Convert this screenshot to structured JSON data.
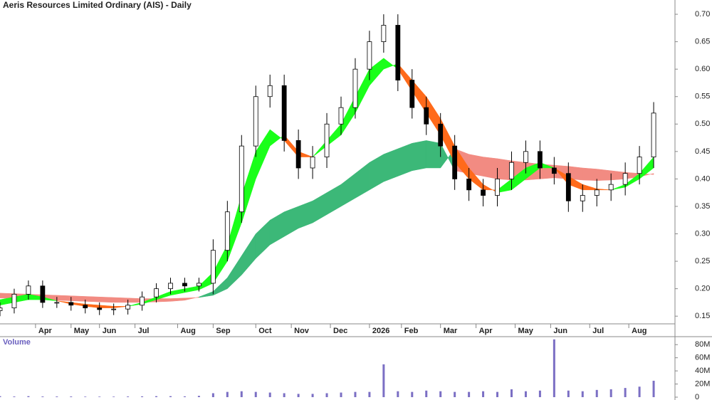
{
  "chart_data": {
    "type": "candlestick",
    "title": "Aeris Resources Limited Ordinary (AIS) - Daily",
    "x": [
      0,
      4,
      8,
      12,
      16,
      20,
      24,
      28,
      32,
      36,
      40,
      44,
      48,
      52,
      56,
      60,
      64,
      68,
      72,
      76,
      80,
      84,
      88,
      92,
      96,
      100,
      104,
      108,
      112,
      116,
      120,
      124,
      128,
      132,
      136,
      140,
      144,
      148,
      152,
      156,
      160,
      164,
      168,
      172,
      176,
      180,
      184
    ],
    "xlim": [
      0,
      190
    ],
    "xticks": [
      {
        "value": 10,
        "label": "Apr"
      },
      {
        "value": 20,
        "label": "May"
      },
      {
        "value": 28,
        "label": "Jun"
      },
      {
        "value": 38,
        "label": "Jul"
      },
      {
        "value": 50,
        "label": "Aug"
      },
      {
        "value": 60,
        "label": "Sep"
      },
      {
        "value": 72,
        "label": "Oct"
      },
      {
        "value": 82,
        "label": "Nov"
      },
      {
        "value": 93,
        "label": "Dec"
      },
      {
        "value": 104,
        "label": "2026"
      },
      {
        "value": 113,
        "label": "Feb"
      },
      {
        "value": 124,
        "label": "Mar"
      },
      {
        "value": 134,
        "label": "Apr"
      },
      {
        "value": 145,
        "label": "May"
      },
      {
        "value": 155,
        "label": "Jun"
      },
      {
        "value": 166,
        "label": "Jul"
      },
      {
        "value": 177,
        "label": "Aug"
      }
    ],
    "ylim": [
      0.136,
      0.726
    ],
    "yticks": [
      0.15,
      {
        "value": 0.2,
        "label": "0.20"
      },
      0.25,
      {
        "value": 0.3,
        "label": "0.30"
      },
      0.35,
      {
        "value": 0.4,
        "label": "0.40"
      },
      0.45,
      {
        "value": 0.5,
        "label": "0.50"
      },
      0.55,
      {
        "value": 0.6,
        "label": "0.60"
      },
      0.65,
      {
        "value": 0.7,
        "label": "0.70"
      }
    ],
    "open": [
      0.16,
      0.165,
      0.19,
      0.205,
      0.175,
      0.175,
      0.17,
      0.165,
      0.162,
      0.163,
      0.17,
      0.185,
      0.2,
      0.21,
      0.205,
      0.21,
      0.27,
      0.34,
      0.46,
      0.55,
      0.57,
      0.47,
      0.42,
      0.44,
      0.5,
      0.53,
      0.6,
      0.65,
      0.68,
      0.58,
      0.53,
      0.5,
      0.46,
      0.4,
      0.38,
      0.37,
      0.4,
      0.43,
      0.45,
      0.42,
      0.41,
      0.36,
      0.37,
      0.38,
      0.39,
      0.41,
      0.44
    ],
    "high": [
      0.175,
      0.2,
      0.215,
      0.215,
      0.185,
      0.185,
      0.18,
      0.175,
      0.173,
      0.18,
      0.195,
      0.21,
      0.22,
      0.22,
      0.22,
      0.29,
      0.36,
      0.48,
      0.57,
      0.59,
      0.59,
      0.49,
      0.46,
      0.52,
      0.55,
      0.62,
      0.67,
      0.7,
      0.7,
      0.6,
      0.55,
      0.52,
      0.48,
      0.42,
      0.4,
      0.42,
      0.45,
      0.47,
      0.47,
      0.44,
      0.43,
      0.39,
      0.4,
      0.41,
      0.43,
      0.46,
      0.54
    ],
    "low": [
      0.15,
      0.155,
      0.18,
      0.165,
      0.165,
      0.16,
      0.155,
      0.152,
      0.152,
      0.153,
      0.16,
      0.175,
      0.19,
      0.195,
      0.195,
      0.19,
      0.25,
      0.32,
      0.44,
      0.53,
      0.45,
      0.4,
      0.4,
      0.42,
      0.48,
      0.51,
      0.58,
      0.63,
      0.56,
      0.51,
      0.48,
      0.44,
      0.38,
      0.36,
      0.35,
      0.35,
      0.38,
      0.41,
      0.4,
      0.39,
      0.34,
      0.34,
      0.35,
      0.36,
      0.37,
      0.39,
      0.42
    ],
    "close": [
      0.165,
      0.19,
      0.205,
      0.175,
      0.175,
      0.17,
      0.165,
      0.162,
      0.163,
      0.17,
      0.185,
      0.2,
      0.21,
      0.205,
      0.21,
      0.27,
      0.34,
      0.46,
      0.55,
      0.57,
      0.47,
      0.42,
      0.44,
      0.5,
      0.53,
      0.6,
      0.65,
      0.68,
      0.58,
      0.53,
      0.5,
      0.46,
      0.4,
      0.38,
      0.37,
      0.4,
      0.43,
      0.45,
      0.42,
      0.41,
      0.36,
      0.37,
      0.38,
      0.39,
      0.41,
      0.44,
      0.52
    ],
    "ribbons": [
      {
        "colors": [
          "#3cb878",
          "#f28b82"
        ],
        "a": [
          0.183,
          0.182,
          0.181,
          0.18,
          0.179,
          0.178,
          0.177,
          0.176,
          0.175,
          0.175,
          0.175,
          0.176,
          0.177,
          0.179,
          0.185,
          0.195,
          0.22,
          0.26,
          0.3,
          0.325,
          0.34,
          0.35,
          0.36,
          0.375,
          0.39,
          0.41,
          0.43,
          0.445,
          0.455,
          0.465,
          0.47,
          0.465,
          0.415,
          0.41,
          0.405,
          0.4,
          0.398,
          0.398,
          0.4,
          0.402,
          0.4,
          0.398,
          0.397,
          0.398,
          0.4,
          0.404,
          0.41
        ],
        "b": [
          0.192,
          0.191,
          0.19,
          0.189,
          0.188,
          0.187,
          0.186,
          0.185,
          0.184,
          0.183,
          0.182,
          0.182,
          0.182,
          0.183,
          0.184,
          0.188,
          0.2,
          0.225,
          0.255,
          0.28,
          0.295,
          0.31,
          0.32,
          0.335,
          0.35,
          0.365,
          0.38,
          0.395,
          0.405,
          0.415,
          0.42,
          0.42,
          0.455,
          0.445,
          0.44,
          0.437,
          0.433,
          0.43,
          0.427,
          0.425,
          0.423,
          0.42,
          0.418,
          0.415,
          0.412,
          0.41,
          0.408
        ]
      },
      {
        "colors": [
          "#1aff1a",
          "#ff6a1a"
        ],
        "a": [
          0.18,
          0.185,
          0.19,
          0.185,
          0.178,
          0.172,
          0.168,
          0.165,
          0.165,
          0.168,
          0.175,
          0.185,
          0.195,
          0.2,
          0.205,
          0.23,
          0.28,
          0.37,
          0.45,
          0.49,
          0.47,
          0.44,
          0.44,
          0.47,
          0.5,
          0.55,
          0.6,
          0.62,
          0.6,
          0.56,
          0.52,
          0.48,
          0.43,
          0.4,
          0.38,
          0.38,
          0.4,
          0.42,
          0.43,
          0.42,
          0.39,
          0.38,
          0.38,
          0.38,
          0.39,
          0.41,
          0.44
        ],
        "b": [
          0.17,
          0.175,
          0.18,
          0.18,
          0.178,
          0.175,
          0.172,
          0.17,
          0.168,
          0.168,
          0.172,
          0.18,
          0.188,
          0.193,
          0.198,
          0.21,
          0.25,
          0.32,
          0.4,
          0.46,
          0.48,
          0.45,
          0.44,
          0.46,
          0.48,
          0.52,
          0.57,
          0.6,
          0.61,
          0.58,
          0.55,
          0.51,
          0.46,
          0.42,
          0.39,
          0.375,
          0.38,
          0.4,
          0.42,
          0.42,
          0.405,
          0.39,
          0.382,
          0.38,
          0.385,
          0.4,
          0.42
        ]
      }
    ],
    "volume": {
      "label": "Volume",
      "color": "#7b6fc4",
      "values": [
        1500000,
        1000000,
        1500000,
        1000000,
        1000000,
        1000000,
        800000,
        800000,
        800000,
        1000000,
        1200000,
        1500000,
        1500000,
        1200000,
        2000000,
        6000000,
        8000000,
        9000000,
        8000000,
        7000000,
        6000000,
        5000000,
        5000000,
        6000000,
        7000000,
        8000000,
        8000000,
        50000000,
        9000000,
        8000000,
        10000000,
        9000000,
        8000000,
        8000000,
        9000000,
        8000000,
        12000000,
        9000000,
        10000000,
        88000000,
        10000000,
        9000000,
        11000000,
        12000000,
        14000000,
        16000000,
        25000000
      ],
      "ylim": [
        0,
        90000000
      ],
      "yticks": [
        0,
        {
          "value": 20000000,
          "label": "20M"
        },
        {
          "value": 40000000,
          "label": "40M"
        },
        {
          "value": 60000000,
          "label": "60M"
        },
        {
          "value": 80000000,
          "label": "80M"
        }
      ]
    }
  }
}
